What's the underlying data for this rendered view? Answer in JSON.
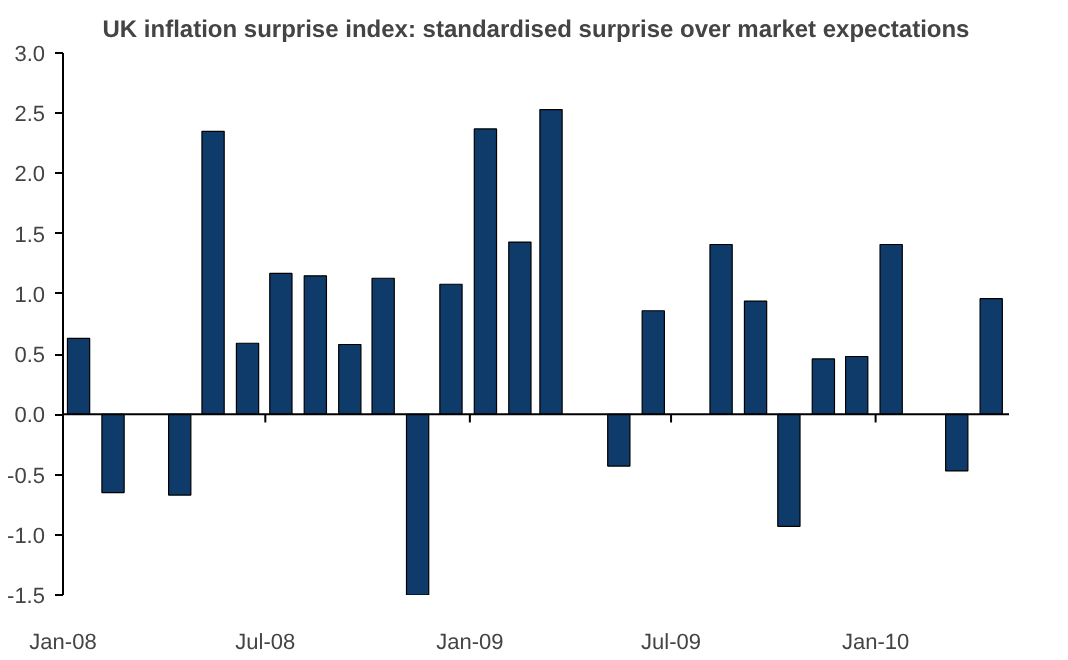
{
  "chart_data": {
    "type": "bar",
    "title": "UK inflation surprise index: standardised surprise over market expectations",
    "x": [
      "2008-01-15",
      "2008-02-15",
      "2008-03-15",
      "2008-04-15",
      "2008-05-15",
      "2008-06-15",
      "2008-07-15",
      "2008-08-15",
      "2008-09-15",
      "2008-10-15",
      "2008-11-15",
      "2008-12-15",
      "2009-01-15",
      "2009-02-15",
      "2009-03-15",
      "2009-04-15",
      "2009-05-15",
      "2009-06-15",
      "2009-07-15",
      "2009-08-15",
      "2009-09-15",
      "2009-10-15",
      "2009-11-15",
      "2009-12-15",
      "2010-01-15",
      "2010-02-15",
      "2010-03-15",
      "2010-04-15"
    ],
    "values": [
      0.63,
      -0.65,
      null,
      -0.67,
      2.35,
      0.59,
      1.17,
      1.15,
      0.58,
      1.13,
      -1.5,
      1.08,
      2.37,
      1.43,
      2.53,
      null,
      -0.43,
      0.86,
      null,
      1.41,
      0.94,
      -0.93,
      0.46,
      0.48,
      1.41,
      null,
      -0.47,
      0.96
    ],
    "color": "#0f3b6a",
    "xlim": [
      "2008-01-01",
      "2010-05-01"
    ],
    "xticks": [
      {
        "value": "2008-01-01",
        "label": "Jan-08"
      },
      {
        "value": "2008-07-01",
        "label": "Jul-08"
      },
      {
        "value": "2009-01-01",
        "label": "Jan-09"
      },
      {
        "value": "2009-07-01",
        "label": "Jul-09"
      },
      {
        "value": "2010-01-01",
        "label": "Jan-10"
      }
    ],
    "ylim": [
      -1.5,
      3.0
    ],
    "yticks": [
      {
        "value": -1.5,
        "label": "-1.5"
      },
      {
        "value": -1.0,
        "label": "-1.0"
      },
      {
        "value": -0.5,
        "label": "-0.5"
      },
      {
        "value": 0,
        "label": "0.0"
      },
      {
        "value": 0.5,
        "label": "0.5"
      },
      {
        "value": 1.0,
        "label": "1.0"
      },
      {
        "value": 1.5,
        "label": "1.5"
      },
      {
        "value": 2.0,
        "label": "2.0"
      },
      {
        "value": 2.5,
        "label": "2.5"
      },
      {
        "value": 3.0,
        "label": "3.0"
      }
    ],
    "ref_lines": [
      {
        "axis": "y",
        "value": 0,
        "color": "#000000"
      }
    ]
  }
}
